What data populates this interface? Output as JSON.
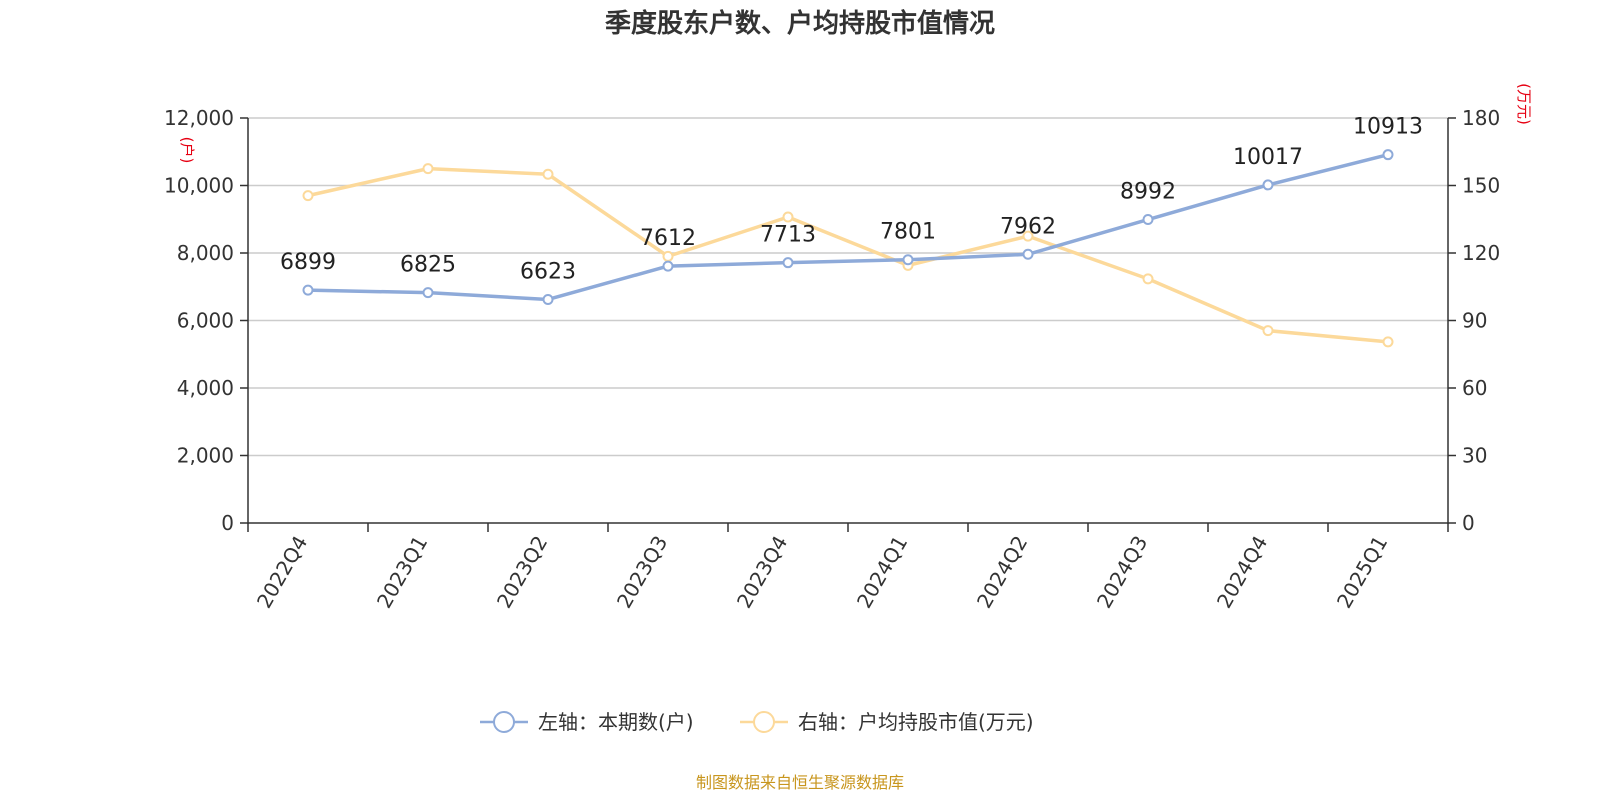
{
  "chart_data": {
    "type": "line",
    "title": "季度股东户数、户均持股市值情况",
    "categories": [
      "2022Q4",
      "2023Q1",
      "2023Q2",
      "2023Q3",
      "2023Q4",
      "2024Q1",
      "2024Q2",
      "2024Q3",
      "2024Q4",
      "2025Q1"
    ],
    "series": [
      {
        "name": "左轴：本期数(户)",
        "axis": "left",
        "color": "#8eaad9",
        "values": [
          6899,
          6825,
          6623,
          7612,
          7713,
          7801,
          7962,
          8992,
          10017,
          10913
        ],
        "labels": [
          "6899",
          "6825",
          "6623",
          "7612",
          "7713",
          "7801",
          "7962",
          "8992",
          "10017",
          "10913"
        ]
      },
      {
        "name": "右轴：户均持股市值(万元)",
        "axis": "right",
        "color": "#fcd99a",
        "values": [
          145.5,
          157.5,
          155.0,
          118.5,
          136.0,
          114.5,
          127.5,
          108.5,
          85.5,
          80.5
        ]
      }
    ],
    "left_axis": {
      "unit": "(户)",
      "ylim": [
        0,
        12000
      ],
      "ticks": [
        0,
        2000,
        4000,
        6000,
        8000,
        10000,
        12000
      ],
      "tick_labels": [
        "0",
        "2,000",
        "4,000",
        "6,000",
        "8,000",
        "10,000",
        "12,000"
      ]
    },
    "right_axis": {
      "unit": "(万元)",
      "ylim": [
        0,
        180
      ],
      "ticks": [
        0,
        30,
        60,
        90,
        120,
        150,
        180
      ],
      "tick_labels": [
        "0",
        "30",
        "60",
        "90",
        "120",
        "150",
        "180"
      ]
    },
    "grid": true,
    "legend_position": "bottom-center",
    "source": "制图数据来自恒生聚源数据库"
  }
}
